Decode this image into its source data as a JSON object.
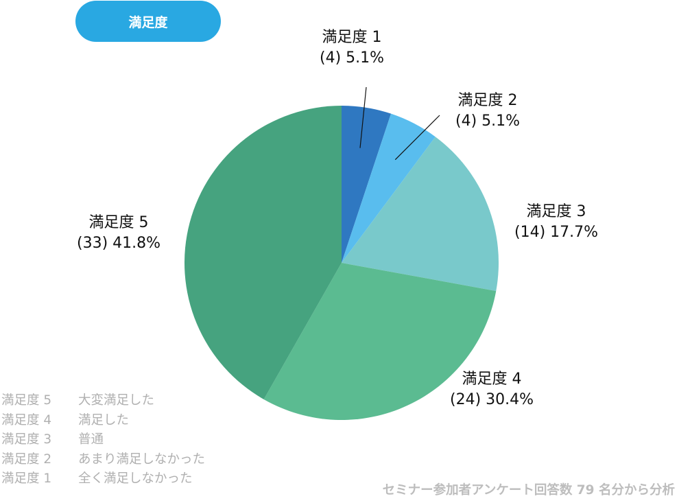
{
  "header": {
    "title": "満足度"
  },
  "chart_data": {
    "type": "pie",
    "title": "満足度",
    "slices": [
      {
        "name": "満足度 1",
        "count": 4,
        "percent_label": "5.1%",
        "value": 5.1,
        "color": "#2f78c1"
      },
      {
        "name": "満足度 2",
        "count": 4,
        "percent_label": "5.1%",
        "value": 5.1,
        "color": "#59bdee"
      },
      {
        "name": "満足度 3",
        "count": 14,
        "percent_label": "17.7%",
        "value": 17.7,
        "color": "#79c9cb"
      },
      {
        "name": "満足度 4",
        "count": 24,
        "percent_label": "30.4%",
        "value": 30.4,
        "color": "#5bbb91"
      },
      {
        "name": "満足度 5",
        "count": 33,
        "percent_label": "41.8%",
        "value": 41.8,
        "color": "#46a37f"
      }
    ],
    "start_angle_deg": 0,
    "direction": "clockwise"
  },
  "labels": [
    {
      "line1": "満足度 1",
      "line2": "(4) 5.1%"
    },
    {
      "line1": "満足度 2",
      "line2": "(4) 5.1%"
    },
    {
      "line1": "満足度 3",
      "line2": "(14) 17.7%"
    },
    {
      "line1": "満足度 4",
      "line2": "(24) 30.4%"
    },
    {
      "line1": "満足度 5",
      "line2": "(33) 41.8%"
    }
  ],
  "legend": [
    {
      "level": "満足度 5",
      "meaning": "大変満足した"
    },
    {
      "level": "満足度 4",
      "meaning": "満足した"
    },
    {
      "level": "満足度 3",
      "meaning": "普通"
    },
    {
      "level": "満足度 2",
      "meaning": "あまり満足しなかった"
    },
    {
      "level": "満足度 1",
      "meaning": "全く満足しなかった"
    }
  ],
  "footer": {
    "note": "セミナー参加者アンケート回答数 79 名分から分析"
  }
}
